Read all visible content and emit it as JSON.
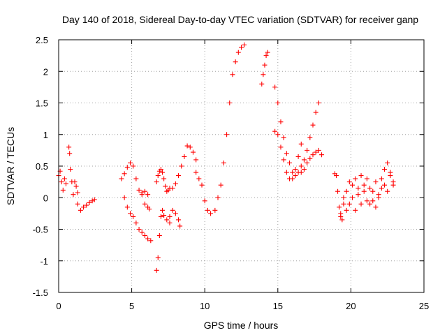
{
  "chart_data": {
    "type": "scatter",
    "title": "Day 140 of 2018, Sidereal Day-to-day VTEC variation (SDTVAR) for receiver ganp",
    "xlabel": "GPS time / hours",
    "ylabel": "SDTVAR / TECUs",
    "xlim": [
      0,
      25
    ],
    "ylim": [
      -1.5,
      2.5
    ],
    "xticks": [
      0,
      5,
      10,
      15,
      20,
      25
    ],
    "xtick_labels": [
      "0",
      "5",
      "10",
      "15",
      "20",
      "25"
    ],
    "yticks": [
      -1.5,
      -1,
      -0.5,
      0,
      0.5,
      1,
      1.5,
      2,
      2.5
    ],
    "ytick_labels": [
      "-1.5",
      "-1",
      "-0.5",
      "0",
      "0.5",
      "1",
      "1.5",
      "2",
      "2.5"
    ],
    "grid": true,
    "marker": "plus",
    "color": "#ff0000",
    "series": [
      {
        "name": "s1",
        "x": [
          0.0,
          0.1,
          0.2,
          0.3,
          0.4,
          0.5
        ],
        "y": [
          0.35,
          0.42,
          0.25,
          0.12,
          0.3,
          0.22
        ]
      },
      {
        "name": "s2",
        "x": [
          0.7,
          0.75,
          0.8,
          0.9,
          1.0,
          1.1,
          1.2,
          1.3
        ],
        "y": [
          0.8,
          0.7,
          0.45,
          0.25,
          0.05,
          0.25,
          0.18,
          0.08
        ]
      },
      {
        "name": "s3",
        "x": [
          1.3,
          1.5,
          1.7,
          1.9,
          2.1,
          2.3,
          2.45
        ],
        "y": [
          -0.1,
          -0.2,
          -0.15,
          -0.12,
          -0.08,
          -0.05,
          -0.03
        ]
      },
      {
        "name": "s4",
        "x": [
          4.3,
          4.5,
          4.7,
          4.9,
          5.1,
          5.3,
          5.5,
          5.7,
          5.9,
          6.1
        ],
        "y": [
          0.3,
          0.38,
          0.48,
          0.55,
          0.5,
          0.3,
          0.12,
          0.08,
          0.1,
          0.05
        ]
      },
      {
        "name": "s5",
        "x": [
          4.5,
          4.7,
          4.9,
          5.1,
          5.3,
          5.5,
          5.7,
          5.9,
          6.1,
          6.3
        ],
        "y": [
          0.0,
          -0.15,
          -0.25,
          -0.3,
          -0.4,
          -0.5,
          -0.55,
          -0.6,
          -0.65,
          -0.68
        ]
      },
      {
        "name": "s6",
        "x": [
          5.7,
          5.9,
          6.1,
          6.2
        ],
        "y": [
          0.05,
          -0.1,
          -0.15,
          -0.18
        ]
      },
      {
        "name": "s7",
        "x": [
          6.7,
          6.8,
          6.9,
          7.0,
          7.1,
          7.2,
          7.4,
          7.6
        ],
        "y": [
          -1.15,
          -0.95,
          -0.6,
          -0.3,
          -0.2,
          -0.28,
          -0.35,
          -0.4
        ]
      },
      {
        "name": "s8",
        "x": [
          6.7,
          6.8,
          6.9,
          7.0,
          7.1,
          7.2,
          7.3,
          7.4,
          7.5,
          7.6
        ],
        "y": [
          0.25,
          0.35,
          0.42,
          0.45,
          0.4,
          0.3,
          0.18,
          0.1,
          0.12,
          0.15
        ]
      },
      {
        "name": "s9",
        "x": [
          7.6,
          7.8,
          8.0,
          8.2,
          8.3
        ],
        "y": [
          -0.3,
          -0.2,
          -0.25,
          -0.35,
          -0.45
        ]
      },
      {
        "name": "s10",
        "x": [
          7.8,
          8.0,
          8.2,
          8.4,
          8.6,
          8.8,
          9.0,
          9.2,
          9.4
        ],
        "y": [
          0.15,
          0.22,
          0.35,
          0.5,
          0.65,
          0.82,
          0.8,
          0.72,
          0.6
        ]
      },
      {
        "name": "s11",
        "x": [
          9.4,
          9.6,
          9.8,
          10.0,
          10.2,
          10.4
        ],
        "y": [
          0.4,
          0.3,
          0.2,
          -0.05,
          -0.2,
          -0.25
        ]
      },
      {
        "name": "s12",
        "x": [
          10.7,
          10.9,
          11.1,
          11.3,
          11.5,
          11.7,
          11.9,
          12.1,
          12.3,
          12.5,
          12.7
        ],
        "y": [
          -0.2,
          0.0,
          0.2,
          0.55,
          1.0,
          1.5,
          1.95,
          2.15,
          2.3,
          2.38,
          2.42
        ]
      },
      {
        "name": "s13",
        "x": [
          13.9,
          14.0,
          14.1,
          14.2,
          14.3
        ],
        "y": [
          1.8,
          1.95,
          2.1,
          2.25,
          2.3
        ]
      },
      {
        "name": "s14",
        "x": [
          14.8,
          15.0,
          15.2,
          15.4,
          15.6,
          15.8,
          16.0,
          16.2,
          16.4,
          16.6
        ],
        "y": [
          1.05,
          1.0,
          0.8,
          0.6,
          0.4,
          0.3,
          0.3,
          0.45,
          0.65,
          0.85
        ]
      },
      {
        "name": "s15",
        "x": [
          14.8,
          15.0,
          15.2,
          15.4,
          15.6,
          15.8,
          16.0,
          16.2,
          16.4,
          16.6,
          16.8,
          17.0,
          17.2,
          17.4,
          17.6,
          17.8
        ],
        "y": [
          1.75,
          1.5,
          1.2,
          0.95,
          0.7,
          0.55,
          0.4,
          0.35,
          0.4,
          0.5,
          0.6,
          0.75,
          0.95,
          1.15,
          1.35,
          1.5
        ]
      },
      {
        "name": "s16",
        "x": [
          16.6,
          16.8,
          17.0,
          17.2,
          17.4,
          17.6,
          17.8,
          18.0
        ],
        "y": [
          0.4,
          0.45,
          0.55,
          0.62,
          0.68,
          0.72,
          0.75,
          0.68
        ]
      },
      {
        "name": "s17",
        "x": [
          18.9,
          19.0,
          19.1,
          19.2,
          19.3,
          19.4
        ],
        "y": [
          0.38,
          0.35,
          0.1,
          -0.15,
          -0.3,
          -0.35
        ]
      },
      {
        "name": "s18",
        "x": [
          19.3,
          19.5,
          19.7,
          19.9,
          20.1,
          20.3,
          20.5,
          20.7,
          20.9,
          21.1,
          21.3,
          21.5,
          21.7,
          21.9,
          22.1,
          22.3,
          22.5,
          22.7,
          22.9
        ],
        "y": [
          -0.25,
          -0.1,
          0.1,
          0.25,
          0.0,
          -0.2,
          0.15,
          0.35,
          0.2,
          -0.05,
          -0.1,
          0.1,
          0.25,
          0.05,
          0.3,
          0.45,
          0.55,
          0.4,
          0.2
        ]
      },
      {
        "name": "s19",
        "x": [
          19.5,
          19.7,
          19.9,
          20.1,
          20.3,
          20.5,
          20.7,
          20.9,
          21.1,
          21.3,
          21.5,
          21.7,
          21.9,
          22.1,
          22.3,
          22.5,
          22.7,
          22.9
        ],
        "y": [
          0.0,
          -0.2,
          -0.1,
          0.2,
          0.3,
          0.05,
          -0.1,
          0.1,
          0.3,
          0.15,
          -0.05,
          -0.15,
          0.0,
          0.15,
          0.2,
          0.1,
          0.35,
          0.25
        ]
      }
    ]
  }
}
